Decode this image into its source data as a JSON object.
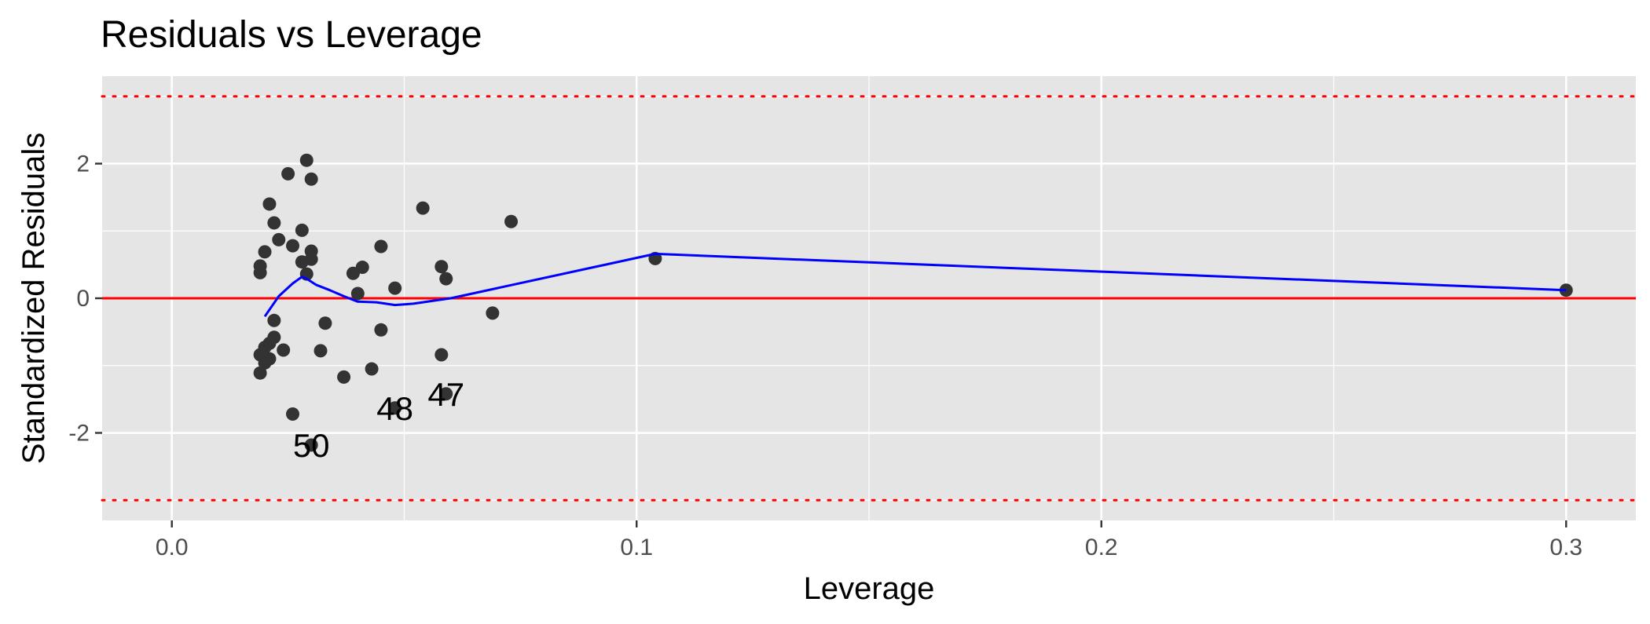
{
  "chart_data": {
    "type": "scatter",
    "title": "Residuals vs Leverage",
    "xlabel": "Leverage",
    "ylabel": "Standardized Residuals",
    "xlim": [
      -0.015,
      0.315
    ],
    "ylim": [
      -3.3,
      3.3
    ],
    "x_ticks": [
      0.0,
      0.1,
      0.2,
      0.3
    ],
    "x_tick_labels": [
      "0.0",
      "0.1",
      "0.2",
      "0.3"
    ],
    "y_ticks": [
      -2,
      0,
      2
    ],
    "y_tick_labels": [
      "-2",
      "0",
      "2"
    ],
    "grid": true,
    "reference_lines": [
      {
        "y": 0,
        "style": "solid",
        "color": "#ff0000"
      },
      {
        "y": 3,
        "style": "dotted",
        "color": "#ff0000"
      },
      {
        "y": -3,
        "style": "dotted",
        "color": "#ff0000"
      }
    ],
    "points": [
      {
        "x": 0.029,
        "y": 2.05
      },
      {
        "x": 0.025,
        "y": 1.85
      },
      {
        "x": 0.03,
        "y": 1.77
      },
      {
        "x": 0.021,
        "y": 1.4
      },
      {
        "x": 0.054,
        "y": 1.34
      },
      {
        "x": 0.073,
        "y": 1.14
      },
      {
        "x": 0.022,
        "y": 1.12
      },
      {
        "x": 0.028,
        "y": 1.01
      },
      {
        "x": 0.023,
        "y": 0.87
      },
      {
        "x": 0.026,
        "y": 0.78
      },
      {
        "x": 0.045,
        "y": 0.77
      },
      {
        "x": 0.02,
        "y": 0.69
      },
      {
        "x": 0.03,
        "y": 0.7
      },
      {
        "x": 0.03,
        "y": 0.58
      },
      {
        "x": 0.028,
        "y": 0.54
      },
      {
        "x": 0.104,
        "y": 0.59
      },
      {
        "x": 0.019,
        "y": 0.48
      },
      {
        "x": 0.041,
        "y": 0.46
      },
      {
        "x": 0.058,
        "y": 0.47
      },
      {
        "x": 0.019,
        "y": 0.38
      },
      {
        "x": 0.039,
        "y": 0.37
      },
      {
        "x": 0.029,
        "y": 0.36
      },
      {
        "x": 0.059,
        "y": 0.29
      },
      {
        "x": 0.048,
        "y": 0.15
      },
      {
        "x": 0.3,
        "y": 0.12
      },
      {
        "x": 0.04,
        "y": 0.07
      },
      {
        "x": 0.069,
        "y": -0.22
      },
      {
        "x": 0.022,
        "y": -0.33
      },
      {
        "x": 0.033,
        "y": -0.37
      },
      {
        "x": 0.045,
        "y": -0.47
      },
      {
        "x": 0.022,
        "y": -0.58
      },
      {
        "x": 0.021,
        "y": -0.67
      },
      {
        "x": 0.02,
        "y": -0.73
      },
      {
        "x": 0.024,
        "y": -0.77
      },
      {
        "x": 0.032,
        "y": -0.78
      },
      {
        "x": 0.019,
        "y": -0.84
      },
      {
        "x": 0.058,
        "y": -0.84
      },
      {
        "x": 0.021,
        "y": -0.9
      },
      {
        "x": 0.02,
        "y": -0.96
      },
      {
        "x": 0.043,
        "y": -1.05
      },
      {
        "x": 0.019,
        "y": -1.11
      },
      {
        "x": 0.037,
        "y": -1.17
      },
      {
        "x": 0.059,
        "y": -1.42
      },
      {
        "x": 0.048,
        "y": -1.63
      },
      {
        "x": 0.026,
        "y": -1.72
      },
      {
        "x": 0.03,
        "y": -2.18
      }
    ],
    "point_labels": [
      {
        "text": "47",
        "x": 0.059,
        "y": -1.42
      },
      {
        "text": "48",
        "x": 0.048,
        "y": -1.63
      },
      {
        "text": "50",
        "x": 0.03,
        "y": -2.18
      }
    ],
    "smooth_line": {
      "color": "#0000ff",
      "x": [
        0.02,
        0.023,
        0.026,
        0.028,
        0.029,
        0.031,
        0.034,
        0.037,
        0.04,
        0.044,
        0.048,
        0.052,
        0.056,
        0.06,
        0.104,
        0.3
      ],
      "y": [
        -0.27,
        0.03,
        0.22,
        0.32,
        0.29,
        0.2,
        0.12,
        0.03,
        -0.05,
        -0.06,
        -0.1,
        -0.08,
        -0.04,
        0.0,
        0.66,
        0.12
      ]
    },
    "colors": {
      "panel": "#e5e5e5",
      "grid": "#ffffff",
      "point": "#333333",
      "reference": "#ff0000",
      "smooth": "#0000ff"
    }
  }
}
